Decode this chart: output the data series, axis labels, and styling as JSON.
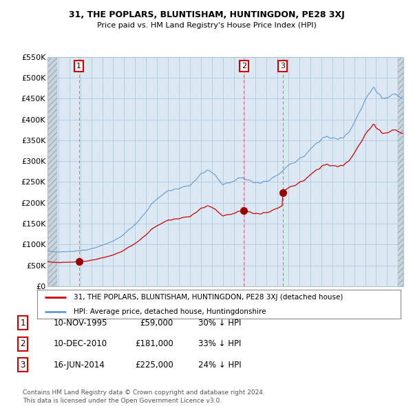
{
  "title1": "31, THE POPLARS, BLUNTISHAM, HUNTINGDON, PE28 3XJ",
  "title2": "Price paid vs. HM Land Registry's House Price Index (HPI)",
  "ylim": [
    0,
    550000
  ],
  "yticks": [
    0,
    50000,
    100000,
    150000,
    200000,
    250000,
    300000,
    350000,
    400000,
    450000,
    500000,
    550000
  ],
  "ytick_labels": [
    "£0",
    "£50K",
    "£100K",
    "£150K",
    "£200K",
    "£250K",
    "£300K",
    "£350K",
    "£400K",
    "£450K",
    "£500K",
    "£550K"
  ],
  "xlim_start": 1993.0,
  "xlim_end": 2025.5,
  "xticks": [
    1993,
    1994,
    1995,
    1996,
    1997,
    1998,
    1999,
    2000,
    2001,
    2002,
    2003,
    2004,
    2005,
    2006,
    2007,
    2008,
    2009,
    2010,
    2011,
    2012,
    2013,
    2014,
    2015,
    2016,
    2017,
    2018,
    2019,
    2020,
    2021,
    2022,
    2023,
    2024,
    2025
  ],
  "sale_dates": [
    1995.86,
    2010.94,
    2014.46
  ],
  "sale_prices": [
    59000,
    181000,
    225000
  ],
  "sale_labels": [
    "1",
    "2",
    "3"
  ],
  "hpi_color": "#6699cc",
  "price_color": "#cc0000",
  "chart_bg": "#dce9f5",
  "hatch_color": "#c0c8d0",
  "legend_label_price": "31, THE POPLARS, BLUNTISHAM, HUNTINGDON, PE28 3XJ (detached house)",
  "legend_label_hpi": "HPI: Average price, detached house, Huntingdonshire",
  "table_data": [
    [
      "1",
      "10-NOV-1995",
      "£59,000",
      "30% ↓ HPI"
    ],
    [
      "2",
      "10-DEC-2010",
      "£181,000",
      "33% ↓ HPI"
    ],
    [
      "3",
      "16-JUN-2014",
      "£225,000",
      "24% ↓ HPI"
    ]
  ],
  "footer": "Contains HM Land Registry data © Crown copyright and database right 2024.\nThis data is licensed under the Open Government Licence v3.0."
}
